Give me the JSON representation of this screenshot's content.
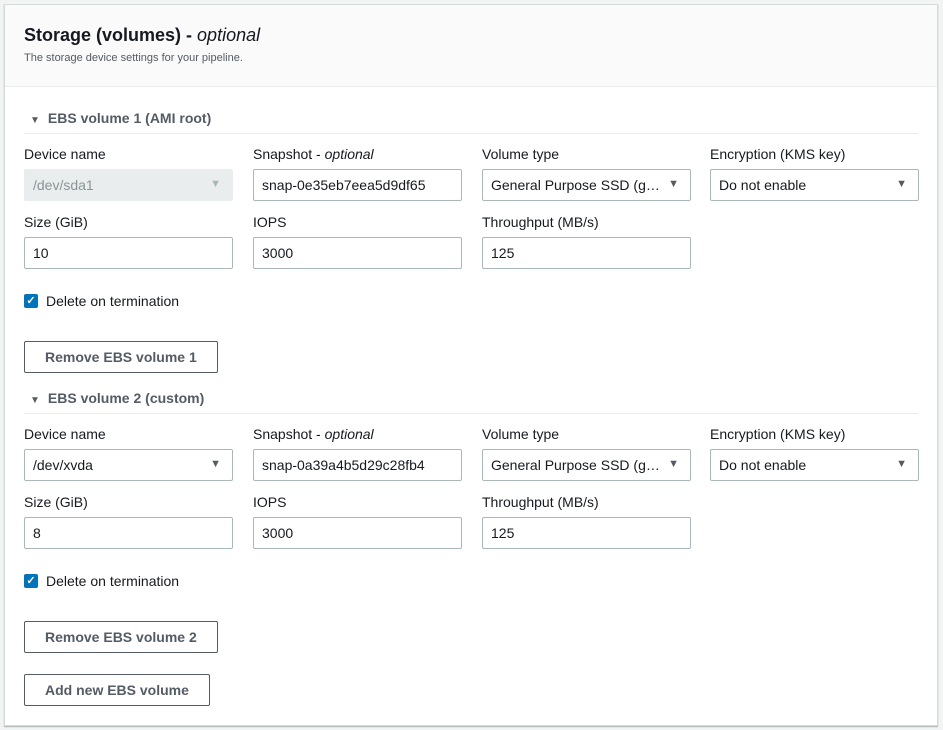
{
  "header": {
    "title": "Storage (volumes)",
    "title_suffix": "optional",
    "description": "The storage device settings for your pipeline."
  },
  "labels": {
    "device_name": "Device name",
    "snapshot": "Snapshot",
    "snapshot_suffix": "optional",
    "volume_type": "Volume type",
    "encryption": "Encryption (KMS key)",
    "size": "Size (GiB)",
    "iops": "IOPS",
    "throughput": "Throughput (MB/s)",
    "delete_on_termination": "Delete on termination"
  },
  "volumes": [
    {
      "title": "EBS volume 1 (AMI root)",
      "device_name": "/dev/sda1",
      "device_disabled": true,
      "snapshot": "snap-0e35eb7eea5d9df65",
      "volume_type": "General Purpose SSD (g…",
      "encryption": "Do not enable",
      "size": "10",
      "iops": "3000",
      "throughput": "125",
      "delete_on_termination": true,
      "remove_label": "Remove EBS volume 1"
    },
    {
      "title": "EBS volume 2 (custom)",
      "device_name": "/dev/xvda",
      "device_disabled": false,
      "snapshot": "snap-0a39a4b5d29c28fb4",
      "volume_type": "General Purpose SSD (g…",
      "encryption": "Do not enable",
      "size": "8",
      "iops": "3000",
      "throughput": "125",
      "delete_on_termination": true,
      "remove_label": "Remove EBS volume 2"
    }
  ],
  "add_button": "Add new EBS volume",
  "colors": {
    "accent": "#0073bb"
  }
}
